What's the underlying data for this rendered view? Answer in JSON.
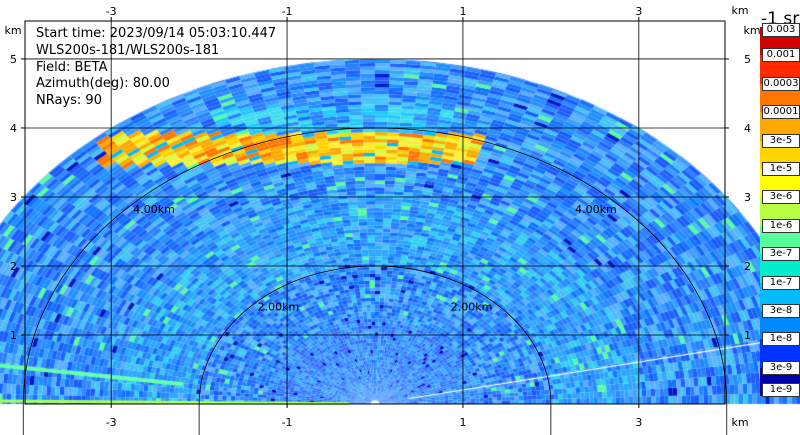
{
  "info": {
    "start_time": "Start time: 2023/09/14 05:03:10.447",
    "instrument": "WLS200s-181/WLS200s-181",
    "field": "Field: BETA",
    "azimuth": "Azimuth(deg): 80.00",
    "nrays": "NRays: 90"
  },
  "colorbar": {
    "unit_label": "-1 sr",
    "labels": [
      "0.003",
      "0.001",
      "0.0003",
      "0.0001",
      "3e-5",
      "1e-5",
      "3e-6",
      "1e-6",
      "3e-7",
      "1e-7",
      "3e-8",
      "1e-8",
      "3e-9",
      "1e-9"
    ],
    "colors": [
      "#d40000",
      "#ff2a00",
      "#ff7700",
      "#ffaa00",
      "#ffd400",
      "#ffff00",
      "#bbff44",
      "#55ff99",
      "#00eecc",
      "#00bbff",
      "#0088ff",
      "#0033ff",
      "#0000aa"
    ]
  },
  "chart_data": {
    "type": "heatmap",
    "projection": "RHI",
    "x_unit": "km",
    "y_unit": "km",
    "xlim": [
      -3.98,
      3.98
    ],
    "ylim": [
      0,
      5.55
    ],
    "x_ticks": [
      -3,
      -1,
      1,
      3
    ],
    "y_ticks": [
      1,
      2,
      3,
      4,
      5
    ],
    "max_range_km": 5.0,
    "range_rings": [
      {
        "radius": 2.0,
        "label": "2.00km"
      },
      {
        "radius": 4.0,
        "label": "4.00km"
      }
    ],
    "grid": true,
    "layers": [
      {
        "feature": "aerosol layer",
        "height_km": [
          3.5,
          3.8
        ],
        "beta": "1e-5 to 3e-4"
      },
      {
        "feature": "background",
        "beta": "3e-8 to 3e-7"
      }
    ]
  }
}
